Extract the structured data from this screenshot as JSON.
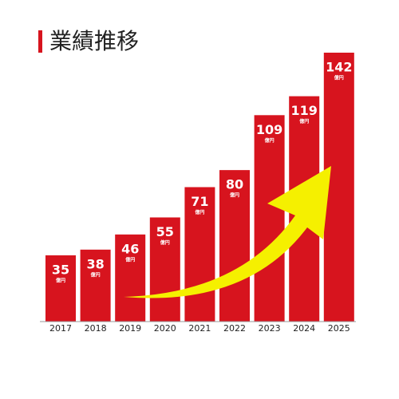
{
  "chart_data": {
    "type": "bar",
    "title": "業績推移",
    "unit": "億円",
    "categories": [
      "2017",
      "2018",
      "2019",
      "2020",
      "2021",
      "2022",
      "2023",
      "2024",
      "2025"
    ],
    "values": [
      35,
      38,
      46,
      55,
      71,
      80,
      109,
      119,
      142
    ],
    "color": "#d7141e"
  }
}
